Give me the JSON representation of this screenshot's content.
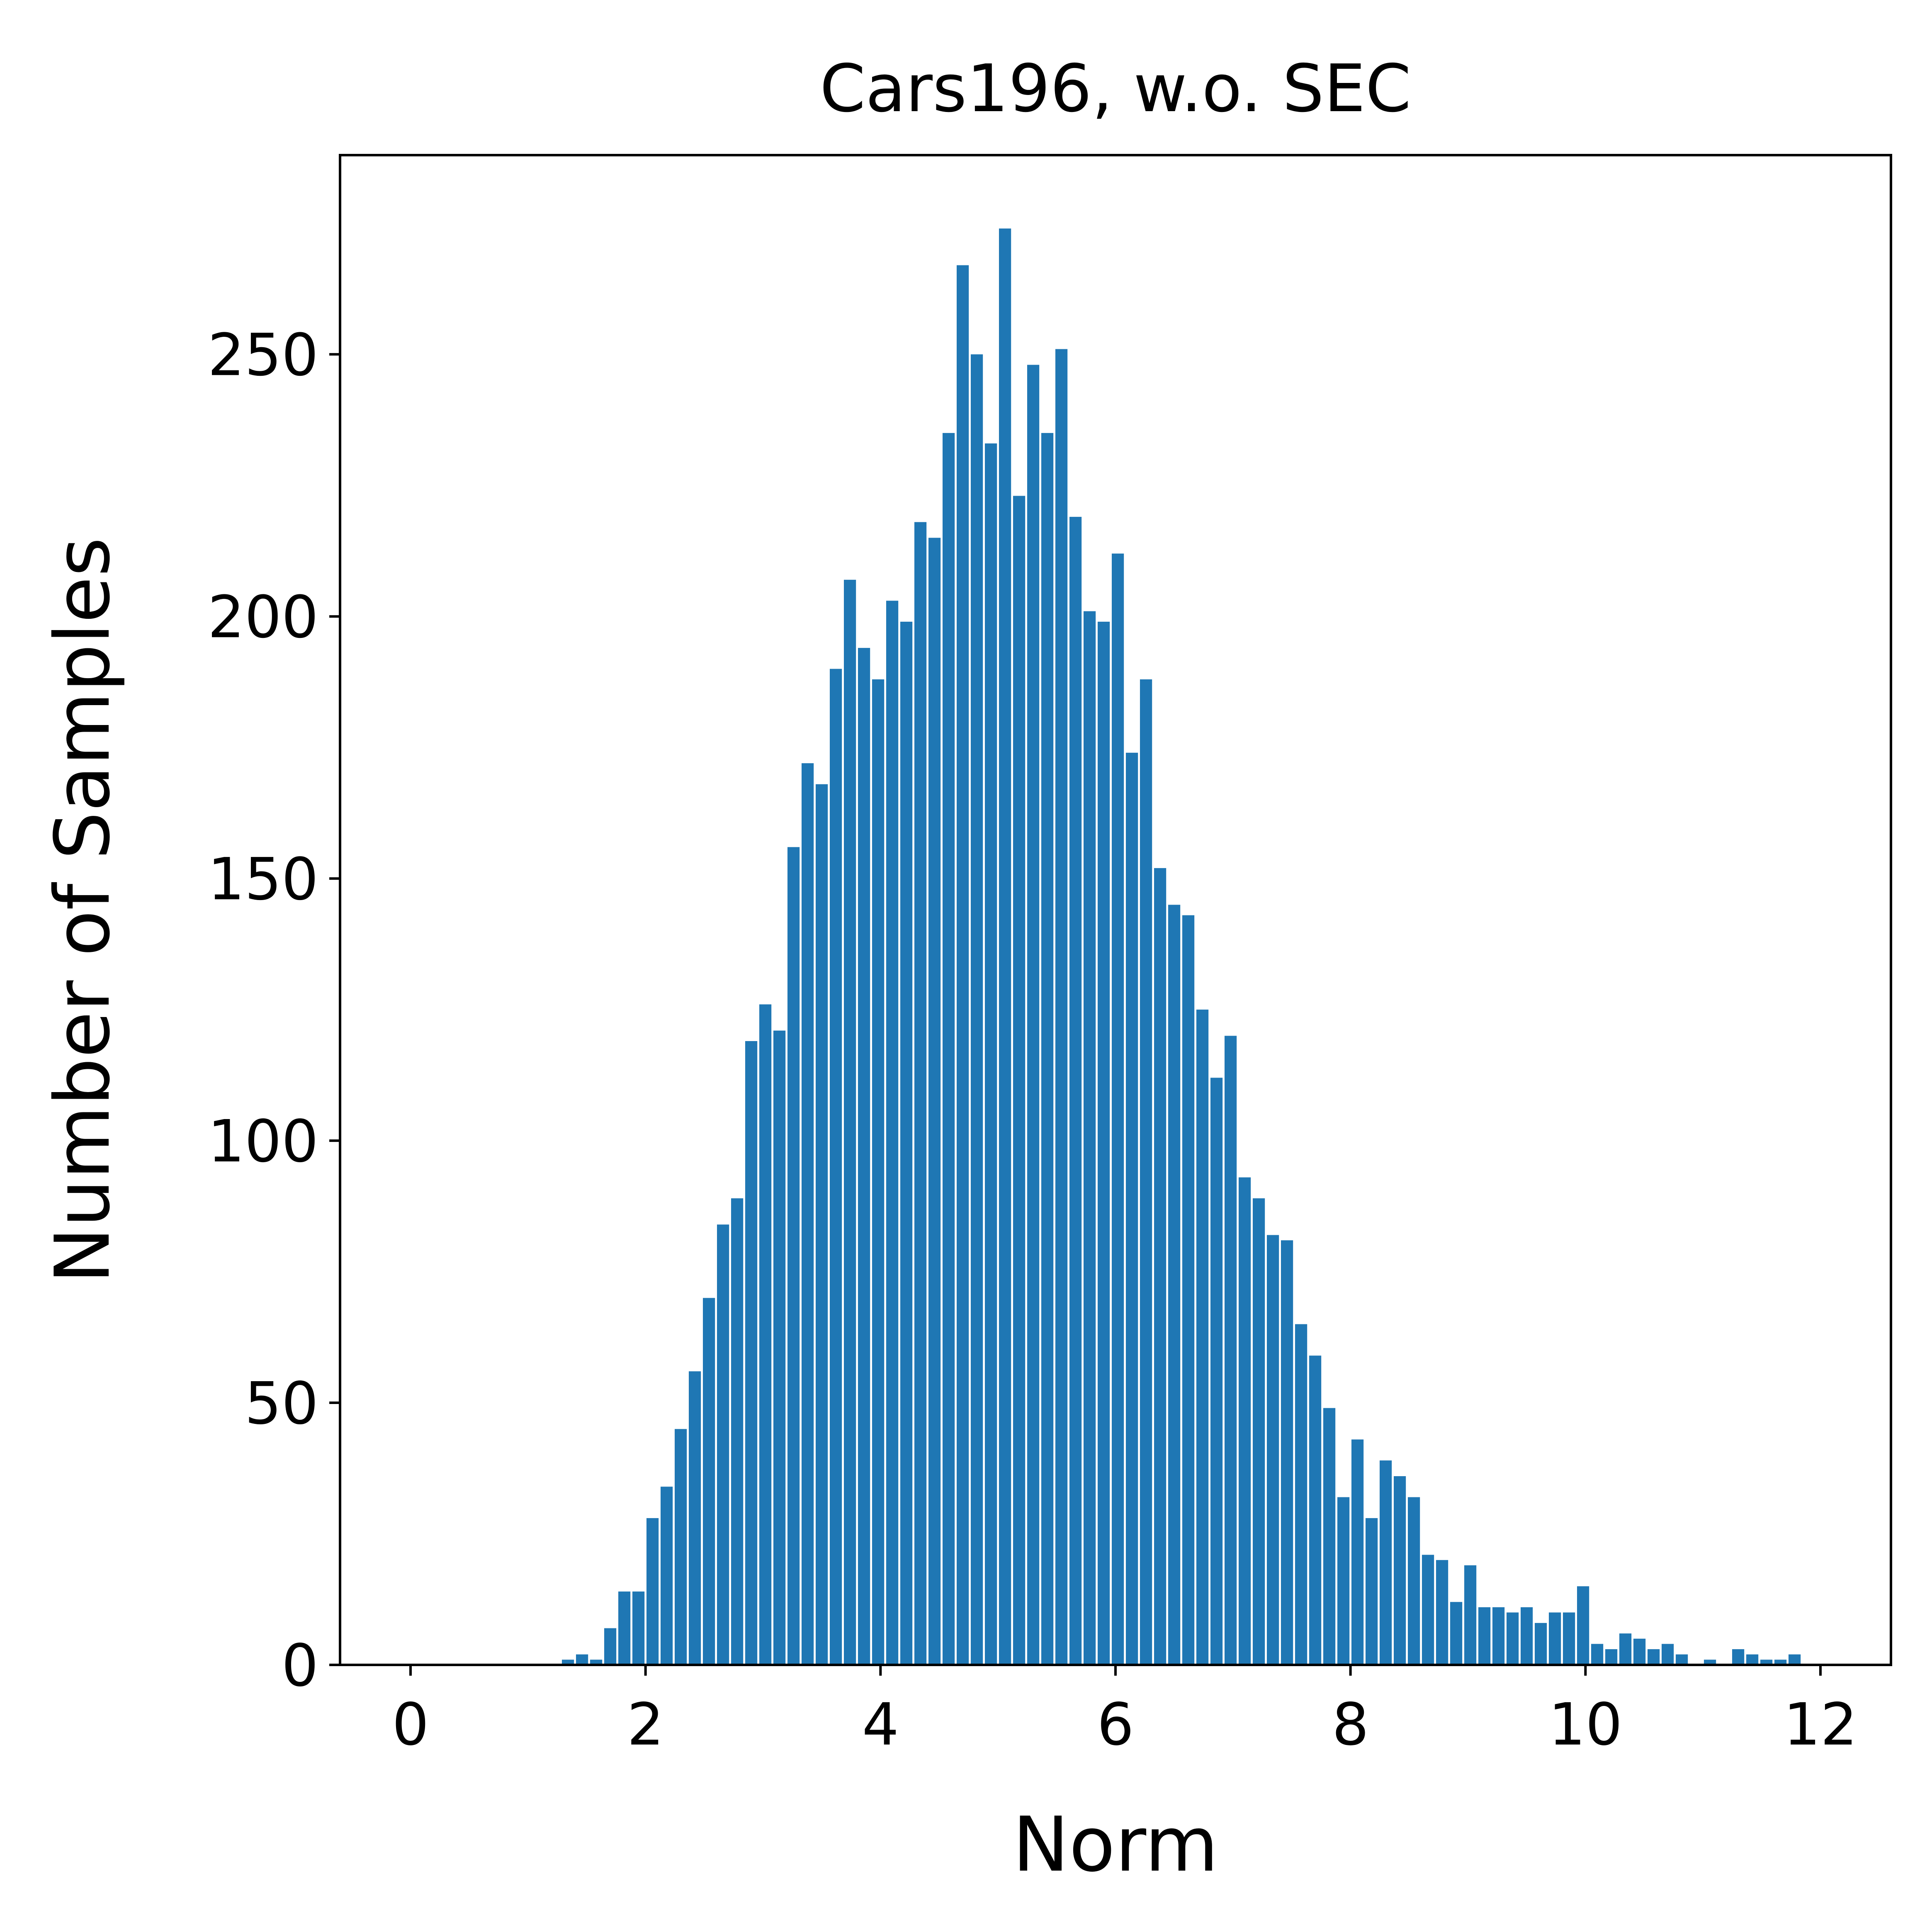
{
  "chart_data": {
    "type": "bar",
    "title": "Cars196, w.o. SEC",
    "xlabel": "Norm",
    "ylabel": "Number of Samples",
    "xlim": [
      -0.6,
      12.6
    ],
    "ylim": [
      0,
      288
    ],
    "xticks": [
      0,
      2,
      4,
      6,
      8,
      10,
      12
    ],
    "yticks": [
      0,
      50,
      100,
      150,
      200,
      250
    ],
    "grid": false,
    "legend": "none",
    "bar_color": "#1f77b4",
    "bin_width": 0.12,
    "x": [
      1.34,
      1.46,
      1.58,
      1.7,
      1.82,
      1.94,
      2.06,
      2.18,
      2.3,
      2.42,
      2.54,
      2.66,
      2.78,
      2.9,
      3.02,
      3.14,
      3.26,
      3.38,
      3.5,
      3.62,
      3.74,
      3.86,
      3.98,
      4.1,
      4.22,
      4.34,
      4.46,
      4.58,
      4.7,
      4.82,
      4.94,
      5.06,
      5.18,
      5.3,
      5.42,
      5.54,
      5.66,
      5.78,
      5.9,
      6.02,
      6.14,
      6.26,
      6.38,
      6.5,
      6.62,
      6.74,
      6.86,
      6.98,
      7.1,
      7.22,
      7.34,
      7.46,
      7.58,
      7.7,
      7.82,
      7.94,
      8.06,
      8.18,
      8.3,
      8.42,
      8.54,
      8.66,
      8.78,
      8.9,
      9.02,
      9.14,
      9.26,
      9.38,
      9.5,
      9.62,
      9.74,
      9.86,
      9.98,
      10.1,
      10.22,
      10.34,
      10.46,
      10.58,
      10.7,
      10.82,
      10.94,
      11.06,
      11.18,
      11.3,
      11.42,
      11.54,
      11.66,
      11.78
    ],
    "values": [
      1,
      2,
      1,
      7,
      14,
      14,
      28,
      34,
      45,
      56,
      70,
      84,
      89,
      119,
      126,
      121,
      156,
      172,
      168,
      190,
      207,
      194,
      188,
      203,
      199,
      218,
      215,
      235,
      267,
      250,
      233,
      274,
      223,
      248,
      235,
      251,
      219,
      201,
      199,
      212,
      174,
      188,
      152,
      145,
      143,
      125,
      112,
      120,
      93,
      89,
      82,
      81,
      65,
      59,
      49,
      32,
      43,
      28,
      39,
      36,
      32,
      21,
      20,
      12,
      19,
      11,
      11,
      10,
      11,
      8,
      10,
      10,
      15,
      4,
      3,
      6,
      5,
      3,
      4,
      2,
      0,
      1,
      0,
      3,
      2,
      1,
      1,
      2
    ]
  }
}
